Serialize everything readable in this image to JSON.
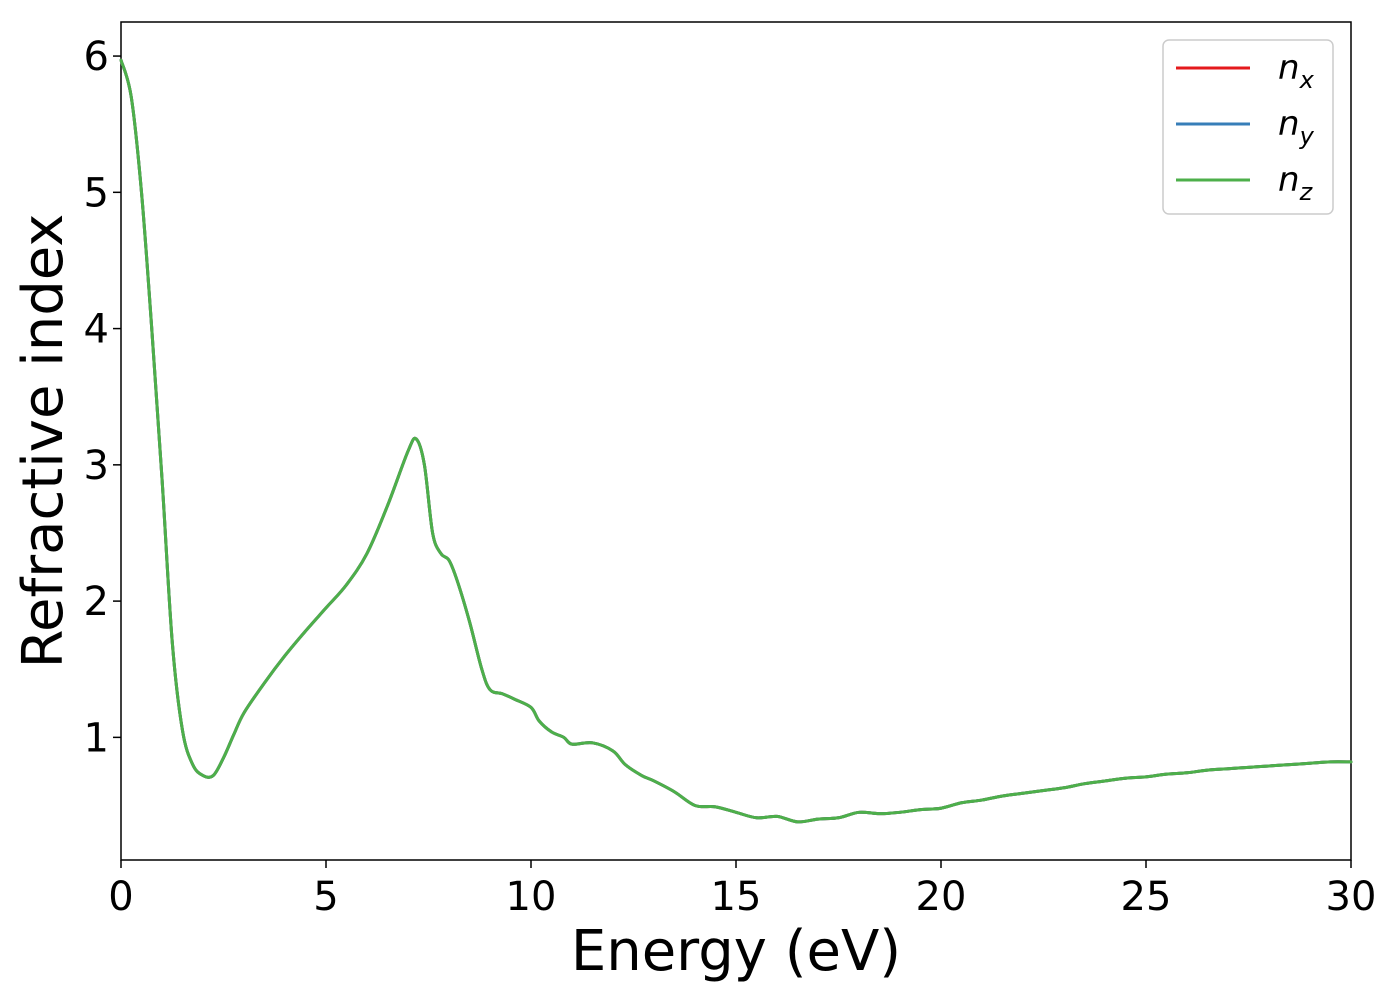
{
  "chart_data": {
    "type": "line",
    "xlabel": "Energy (eV)",
    "ylabel": "Refractive index",
    "xlim": [
      0,
      30
    ],
    "ylim": [
      0.1,
      6.25
    ],
    "xticks": [
      "0",
      "5",
      "10",
      "15",
      "20",
      "25",
      "30"
    ],
    "yticks": [
      "1",
      "2",
      "3",
      "4",
      "5",
      "6"
    ],
    "grid": false,
    "legend_position": "top-right",
    "x": [
      0,
      0.25,
      0.5,
      0.75,
      1.0,
      1.25,
      1.5,
      1.75,
      2.0,
      2.25,
      2.5,
      2.75,
      3.0,
      3.5,
      4.0,
      4.5,
      5.0,
      5.5,
      6.0,
      6.5,
      7.0,
      7.2,
      7.4,
      7.6,
      7.8,
      8.0,
      8.2,
      8.5,
      8.8,
      9.0,
      9.3,
      9.6,
      10.0,
      10.2,
      10.5,
      10.8,
      11.0,
      11.5,
      12.0,
      12.3,
      12.7,
      13.0,
      13.5,
      14.0,
      14.5,
      15.0,
      15.5,
      16.0,
      16.5,
      17.0,
      17.5,
      18.0,
      18.5,
      19.0,
      19.5,
      20.0,
      20.5,
      21.0,
      21.5,
      22.0,
      22.5,
      23.0,
      23.5,
      24.0,
      24.5,
      25.0,
      25.5,
      26.0,
      26.5,
      27.0,
      27.5,
      28.0,
      28.5,
      29.0,
      29.5,
      30.0
    ],
    "series": [
      {
        "name": "n_x",
        "color": "#e41a1c",
        "values": [
          5.97,
          5.7,
          5.0,
          4.0,
          2.9,
          1.7,
          1.05,
          0.8,
          0.72,
          0.72,
          0.85,
          1.02,
          1.18,
          1.4,
          1.6,
          1.78,
          1.95,
          2.12,
          2.35,
          2.7,
          3.1,
          3.19,
          3.0,
          2.5,
          2.35,
          2.3,
          2.15,
          1.85,
          1.5,
          1.35,
          1.32,
          1.28,
          1.22,
          1.12,
          1.04,
          1.0,
          0.95,
          0.96,
          0.9,
          0.8,
          0.72,
          0.68,
          0.6,
          0.5,
          0.49,
          0.45,
          0.41,
          0.42,
          0.38,
          0.4,
          0.41,
          0.45,
          0.44,
          0.45,
          0.47,
          0.48,
          0.52,
          0.54,
          0.57,
          0.59,
          0.61,
          0.63,
          0.66,
          0.68,
          0.7,
          0.71,
          0.73,
          0.74,
          0.76,
          0.77,
          0.78,
          0.79,
          0.8,
          0.81,
          0.82,
          0.82
        ]
      },
      {
        "name": "n_y",
        "color": "#377eb8",
        "values": [
          5.97,
          5.7,
          5.0,
          4.0,
          2.9,
          1.7,
          1.05,
          0.8,
          0.72,
          0.72,
          0.85,
          1.02,
          1.18,
          1.4,
          1.6,
          1.78,
          1.95,
          2.12,
          2.35,
          2.7,
          3.1,
          3.19,
          3.0,
          2.5,
          2.35,
          2.3,
          2.15,
          1.85,
          1.5,
          1.35,
          1.32,
          1.28,
          1.22,
          1.12,
          1.04,
          1.0,
          0.95,
          0.96,
          0.9,
          0.8,
          0.72,
          0.68,
          0.6,
          0.5,
          0.49,
          0.45,
          0.41,
          0.42,
          0.38,
          0.4,
          0.41,
          0.45,
          0.44,
          0.45,
          0.47,
          0.48,
          0.52,
          0.54,
          0.57,
          0.59,
          0.61,
          0.63,
          0.66,
          0.68,
          0.7,
          0.71,
          0.73,
          0.74,
          0.76,
          0.77,
          0.78,
          0.79,
          0.8,
          0.81,
          0.82,
          0.82
        ]
      },
      {
        "name": "n_z",
        "color": "#4daf4a",
        "values": [
          5.97,
          5.7,
          5.0,
          4.0,
          2.9,
          1.7,
          1.05,
          0.8,
          0.72,
          0.72,
          0.85,
          1.02,
          1.18,
          1.4,
          1.6,
          1.78,
          1.95,
          2.12,
          2.35,
          2.7,
          3.1,
          3.19,
          3.0,
          2.5,
          2.35,
          2.3,
          2.15,
          1.85,
          1.5,
          1.35,
          1.32,
          1.28,
          1.22,
          1.12,
          1.04,
          1.0,
          0.95,
          0.96,
          0.9,
          0.8,
          0.72,
          0.68,
          0.6,
          0.5,
          0.49,
          0.45,
          0.41,
          0.42,
          0.38,
          0.4,
          0.41,
          0.45,
          0.44,
          0.45,
          0.47,
          0.48,
          0.52,
          0.54,
          0.57,
          0.59,
          0.61,
          0.63,
          0.66,
          0.68,
          0.7,
          0.71,
          0.73,
          0.74,
          0.76,
          0.77,
          0.78,
          0.79,
          0.8,
          0.81,
          0.82,
          0.82
        ]
      }
    ],
    "legend": [
      {
        "base": "n",
        "sub": "x"
      },
      {
        "base": "n",
        "sub": "y"
      },
      {
        "base": "n",
        "sub": "z"
      }
    ]
  }
}
